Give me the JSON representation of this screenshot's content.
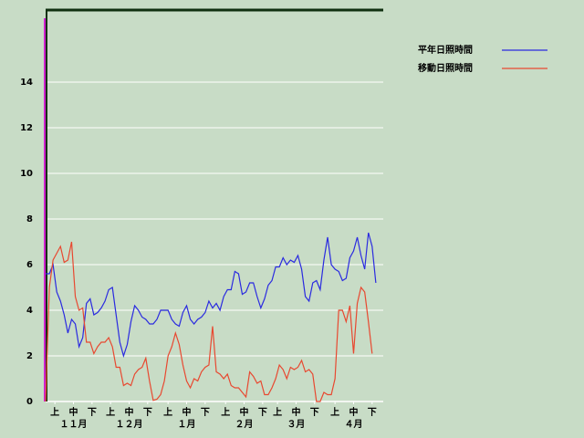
{
  "chart_data": {
    "type": "line",
    "x": [
      0,
      2,
      4,
      6,
      8,
      10,
      12,
      14,
      16,
      18,
      20,
      22,
      24,
      26,
      28,
      30,
      32,
      34,
      36,
      38,
      40,
      42,
      44,
      46,
      48,
      50,
      52,
      54,
      56,
      58,
      60,
      62,
      64,
      66,
      68,
      70,
      72,
      74,
      76,
      78,
      80,
      82,
      84,
      86,
      88,
      90,
      92,
      94,
      96,
      98,
      100,
      102,
      104,
      106,
      108,
      110,
      112,
      114,
      116,
      118,
      120,
      122,
      124,
      126,
      128,
      130,
      132,
      134,
      136,
      138,
      140,
      142,
      144,
      146,
      148,
      150,
      152,
      154,
      156,
      158,
      160,
      162,
      164,
      166,
      168,
      170,
      172,
      174,
      176,
      178
    ],
    "xlim": [
      0,
      182
    ],
    "xticks": [
      {
        "value": 5,
        "label": "上"
      },
      {
        "value": 15,
        "label": "中"
      },
      {
        "value": 25,
        "label": "下"
      },
      {
        "value": 35,
        "label": "上"
      },
      {
        "value": 45,
        "label": "中"
      },
      {
        "value": 55,
        "label": "下"
      },
      {
        "value": 66,
        "label": "上"
      },
      {
        "value": 76,
        "label": "中"
      },
      {
        "value": 86,
        "label": "下"
      },
      {
        "value": 97,
        "label": "上"
      },
      {
        "value": 107,
        "label": "中"
      },
      {
        "value": 117,
        "label": "下"
      },
      {
        "value": 125,
        "label": "上"
      },
      {
        "value": 135,
        "label": "中"
      },
      {
        "value": 145,
        "label": "下"
      },
      {
        "value": 156,
        "label": "上"
      },
      {
        "value": 166,
        "label": "中"
      },
      {
        "value": 176,
        "label": "下"
      }
    ],
    "month_ticks": [
      {
        "value": 15,
        "label": "１１月"
      },
      {
        "value": 45,
        "label": "１２月"
      },
      {
        "value": 76,
        "label": "１月"
      },
      {
        "value": 107,
        "label": "２月"
      },
      {
        "value": 135,
        "label": "３月"
      },
      {
        "value": 166,
        "label": "４月"
      }
    ],
    "ylim": [
      0,
      17.2
    ],
    "yticks": [
      0,
      2,
      4,
      6,
      8,
      10,
      12,
      14
    ],
    "grid": true,
    "series": [
      {
        "name": "平年日照時間",
        "color": "#2a2ae0",
        "values": [
          5.6,
          5.6,
          6.0,
          4.8,
          4.4,
          3.8,
          3.0,
          3.6,
          3.4,
          2.4,
          2.8,
          4.3,
          4.5,
          3.8,
          3.9,
          4.1,
          4.4,
          4.9,
          5.0,
          3.8,
          2.6,
          2.0,
          2.5,
          3.5,
          4.2,
          4.0,
          3.7,
          3.6,
          3.4,
          3.4,
          3.6,
          4.0,
          4.0,
          4.0,
          3.6,
          3.4,
          3.3,
          3.9,
          4.2,
          3.6,
          3.4,
          3.6,
          3.7,
          3.9,
          4.4,
          4.1,
          4.3,
          4.0,
          4.6,
          4.9,
          4.9,
          5.7,
          5.6,
          4.7,
          4.8,
          5.2,
          5.2,
          4.6,
          4.1,
          4.5,
          5.1,
          5.3,
          5.9,
          5.9,
          6.3,
          6.0,
          6.2,
          6.1,
          6.4,
          5.8,
          4.6,
          4.4,
          5.2,
          5.3,
          4.9,
          6.2,
          7.2,
          6.0,
          5.8,
          5.7,
          5.3,
          5.4,
          6.3,
          6.6,
          7.2,
          6.4,
          5.8,
          7.4,
          6.8,
          5.2
        ]
      },
      {
        "name": "移動日照時間",
        "color": "#e84830",
        "values": [
          0,
          5.0,
          6.2,
          6.5,
          6.8,
          6.1,
          6.2,
          7.0,
          4.6,
          4.0,
          4.1,
          2.6,
          2.6,
          2.1,
          2.4,
          2.6,
          2.6,
          2.8,
          2.4,
          1.5,
          1.5,
          0.7,
          0.8,
          0.7,
          1.2,
          1.4,
          1.5,
          1.9,
          0.9,
          0.05,
          0.1,
          0.3,
          0.9,
          2.0,
          2.4,
          3.0,
          2.5,
          1.6,
          0.9,
          0.6,
          1.0,
          0.9,
          1.3,
          1.5,
          1.6,
          3.3,
          1.3,
          1.2,
          1.0,
          1.2,
          0.7,
          0.6,
          0.6,
          0.4,
          0.2,
          1.3,
          1.1,
          0.8,
          0.9,
          0.3,
          0.3,
          0.6,
          1.0,
          1.6,
          1.4,
          1.0,
          1.5,
          1.4,
          1.5,
          1.8,
          1.3,
          1.4,
          1.2,
          0.0,
          0.0,
          0.4,
          0.3,
          0.3,
          1.0,
          4.0,
          4.0,
          3.5,
          4.2,
          2.1,
          4.3,
          5.0,
          4.8,
          3.5,
          2.1,
          null
        ]
      }
    ]
  }
}
